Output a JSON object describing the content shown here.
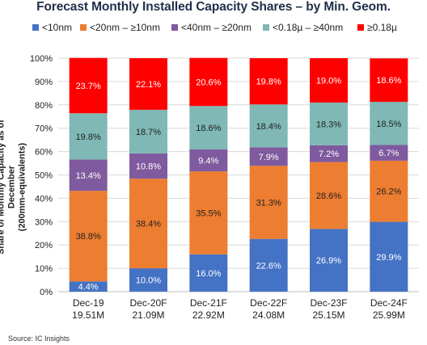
{
  "chart_data": {
    "type": "bar",
    "stacked": true,
    "percent_stacked": true,
    "title": "Forecast Monthly Installed Capacity Shares – by Min. Geom.",
    "ylabel_line1": "Share of Monthly Capacity as of December",
    "ylabel_line2": "(200mm-equivalents)",
    "xlabel": "",
    "categories": [
      "Dec-19",
      "Dec-20F",
      "Dec-21F",
      "Dec-22F",
      "Dec-23F",
      "Dec-24F"
    ],
    "category_sublabels": [
      "19.51M",
      "21.09M",
      "22.92M",
      "24.08M",
      "25.15M",
      "25.99M"
    ],
    "yticks": [
      "0%",
      "10%",
      "20%",
      "30%",
      "40%",
      "50%",
      "60%",
      "70%",
      "80%",
      "90%",
      "100%"
    ],
    "ylim": [
      0,
      100
    ],
    "grid": true,
    "legend_position": "top",
    "series": [
      {
        "name": "<10nm",
        "color": "#4472c4",
        "values": [
          4.4,
          10.0,
          16.0,
          22.6,
          26.9,
          29.9
        ],
        "labels": [
          "4.4%",
          "10.0%",
          "16.0%",
          "22.6%",
          "26.9%",
          "29.9%"
        ]
      },
      {
        "name": "<20nm – ≥10nm",
        "color": "#ed7d31",
        "values": [
          38.8,
          38.4,
          35.5,
          31.3,
          28.6,
          26.2
        ],
        "labels": [
          "38.8%",
          "38.4%",
          "35.5%",
          "31.3%",
          "28.6%",
          "26.2%"
        ]
      },
      {
        "name": "<40nm – ≥20nm",
        "color": "#7f5a9e",
        "values": [
          13.4,
          10.8,
          9.4,
          7.9,
          7.2,
          6.7
        ],
        "labels": [
          "13.4%",
          "10.8%",
          "9.4%",
          "7.9%",
          "7.2%",
          "6.7%"
        ]
      },
      {
        "name": "<0.18µ – ≥40nm",
        "color": "#7fb8b4",
        "values": [
          19.8,
          18.7,
          18.6,
          18.4,
          18.3,
          18.5
        ],
        "labels": [
          "19.8%",
          "18.7%",
          "18.6%",
          "18.4%",
          "18.3%",
          "18.5%"
        ]
      },
      {
        "name": "≥0.18µ",
        "color": "#ff0000",
        "values": [
          23.7,
          22.1,
          20.6,
          19.8,
          19.0,
          18.6
        ],
        "labels": [
          "23.7%",
          "22.1%",
          "20.6%",
          "19.8%",
          "19.0%",
          "18.6%"
        ]
      }
    ],
    "source": "Source:  IC Insights"
  }
}
